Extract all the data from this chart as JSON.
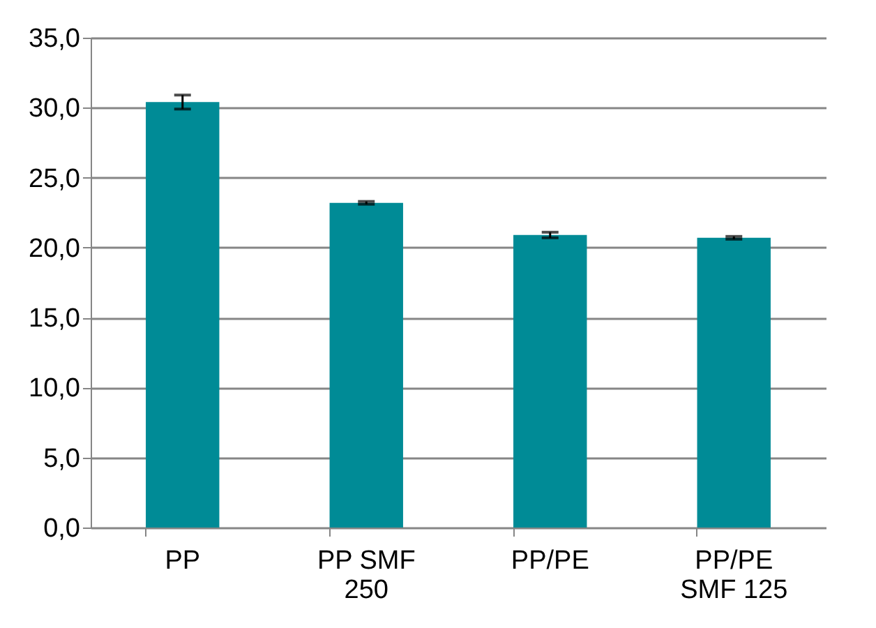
{
  "chart_data": {
    "type": "bar",
    "categories": [
      "PP",
      "PP SMF\n250",
      "PP/PE",
      "PP/PE\nSMF 125"
    ],
    "values": [
      30.4,
      23.2,
      20.9,
      20.7
    ],
    "errors": [
      0.5,
      0.1,
      0.2,
      0.1
    ],
    "color": "#008b96",
    "ylim": [
      0,
      35
    ],
    "yticks": [
      {
        "value": 0,
        "label": "0,0"
      },
      {
        "value": 5,
        "label": "5,0"
      },
      {
        "value": 10,
        "label": "10,0"
      },
      {
        "value": 15,
        "label": "15,0"
      },
      {
        "value": 20,
        "label": "20,0"
      },
      {
        "value": 25,
        "label": "25,0"
      },
      {
        "value": 30,
        "label": "30,0"
      },
      {
        "value": 35,
        "label": "35,0"
      }
    ],
    "grid": "y"
  }
}
